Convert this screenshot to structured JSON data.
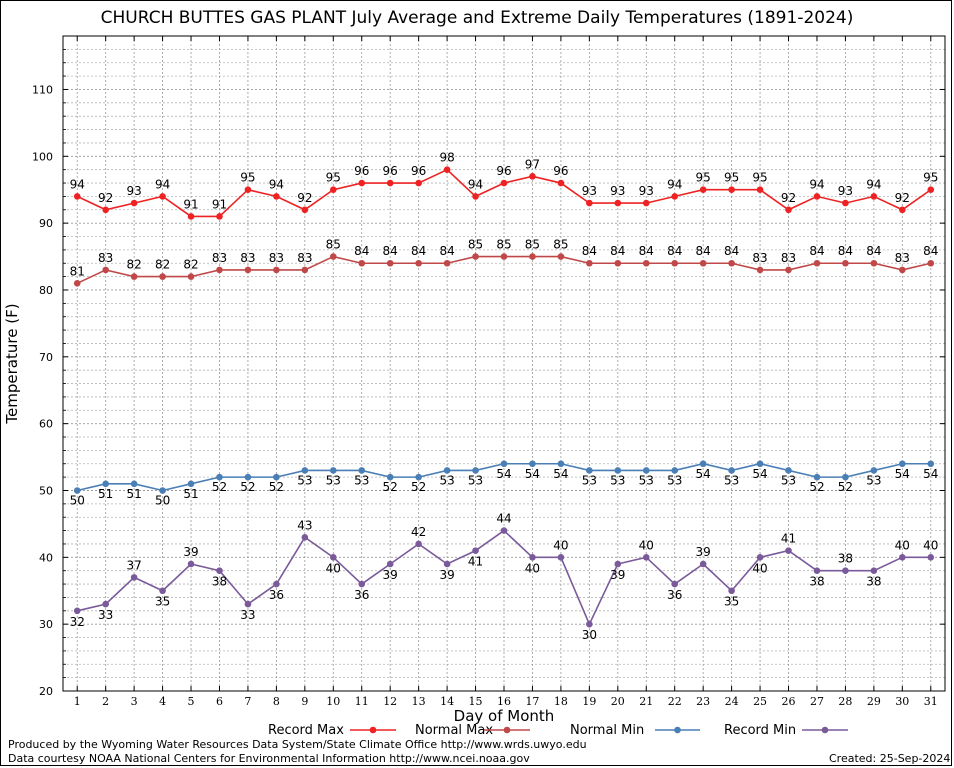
{
  "chart_data": {
    "type": "line",
    "title": "CHURCH BUTTES GAS PLANT July Average and Extreme Daily Temperatures (1891-2024)",
    "xlabel": "Day of Month",
    "ylabel": "Temperature (F)",
    "ylim": [
      20,
      118
    ],
    "yticks": [
      20,
      30,
      40,
      50,
      60,
      70,
      80,
      90,
      100,
      110
    ],
    "grid": true,
    "legend_position": "bottom",
    "x": [
      1,
      2,
      3,
      4,
      5,
      6,
      7,
      8,
      9,
      10,
      11,
      12,
      13,
      14,
      15,
      16,
      17,
      18,
      19,
      20,
      21,
      22,
      23,
      24,
      25,
      26,
      27,
      28,
      29,
      30,
      31
    ],
    "series": [
      {
        "name": "Record Max",
        "color": "#ee2222",
        "values": [
          94,
          92,
          93,
          94,
          91,
          91,
          95,
          94,
          92,
          95,
          96,
          96,
          96,
          98,
          94,
          96,
          97,
          96,
          93,
          93,
          93,
          94,
          95,
          95,
          95,
          92,
          94,
          93,
          94,
          92,
          95
        ]
      },
      {
        "name": "Normal Max",
        "color": "#c04848",
        "values": [
          81,
          83,
          82,
          82,
          82,
          83,
          83,
          83,
          83,
          85,
          84,
          84,
          84,
          84,
          85,
          85,
          85,
          85,
          84,
          84,
          84,
          84,
          84,
          84,
          83,
          83,
          84,
          84,
          84,
          83,
          84
        ]
      },
      {
        "name": "Normal Min",
        "color": "#4a7fb5",
        "values": [
          50,
          51,
          51,
          50,
          51,
          52,
          52,
          52,
          53,
          53,
          53,
          52,
          52,
          53,
          53,
          54,
          54,
          54,
          53,
          53,
          53,
          53,
          54,
          53,
          54,
          53,
          52,
          52,
          53,
          54,
          54
        ]
      },
      {
        "name": "Record Min",
        "color": "#7a5a9a",
        "values": [
          32,
          33,
          37,
          35,
          39,
          38,
          33,
          36,
          43,
          40,
          36,
          39,
          42,
          39,
          41,
          44,
          40,
          40,
          30,
          39,
          40,
          36,
          39,
          35,
          40,
          41,
          38,
          38,
          38,
          40,
          40
        ]
      }
    ]
  },
  "footer": {
    "produced_by": "Produced by the Wyoming Water Resources Data System/State Climate Office http://www.wrds.uwyo.edu",
    "data_courtesy": "Data courtesy NOAA National Centers for Environmental Information http://www.ncei.noaa.gov",
    "created": "Created:  25-Sep-2024"
  }
}
